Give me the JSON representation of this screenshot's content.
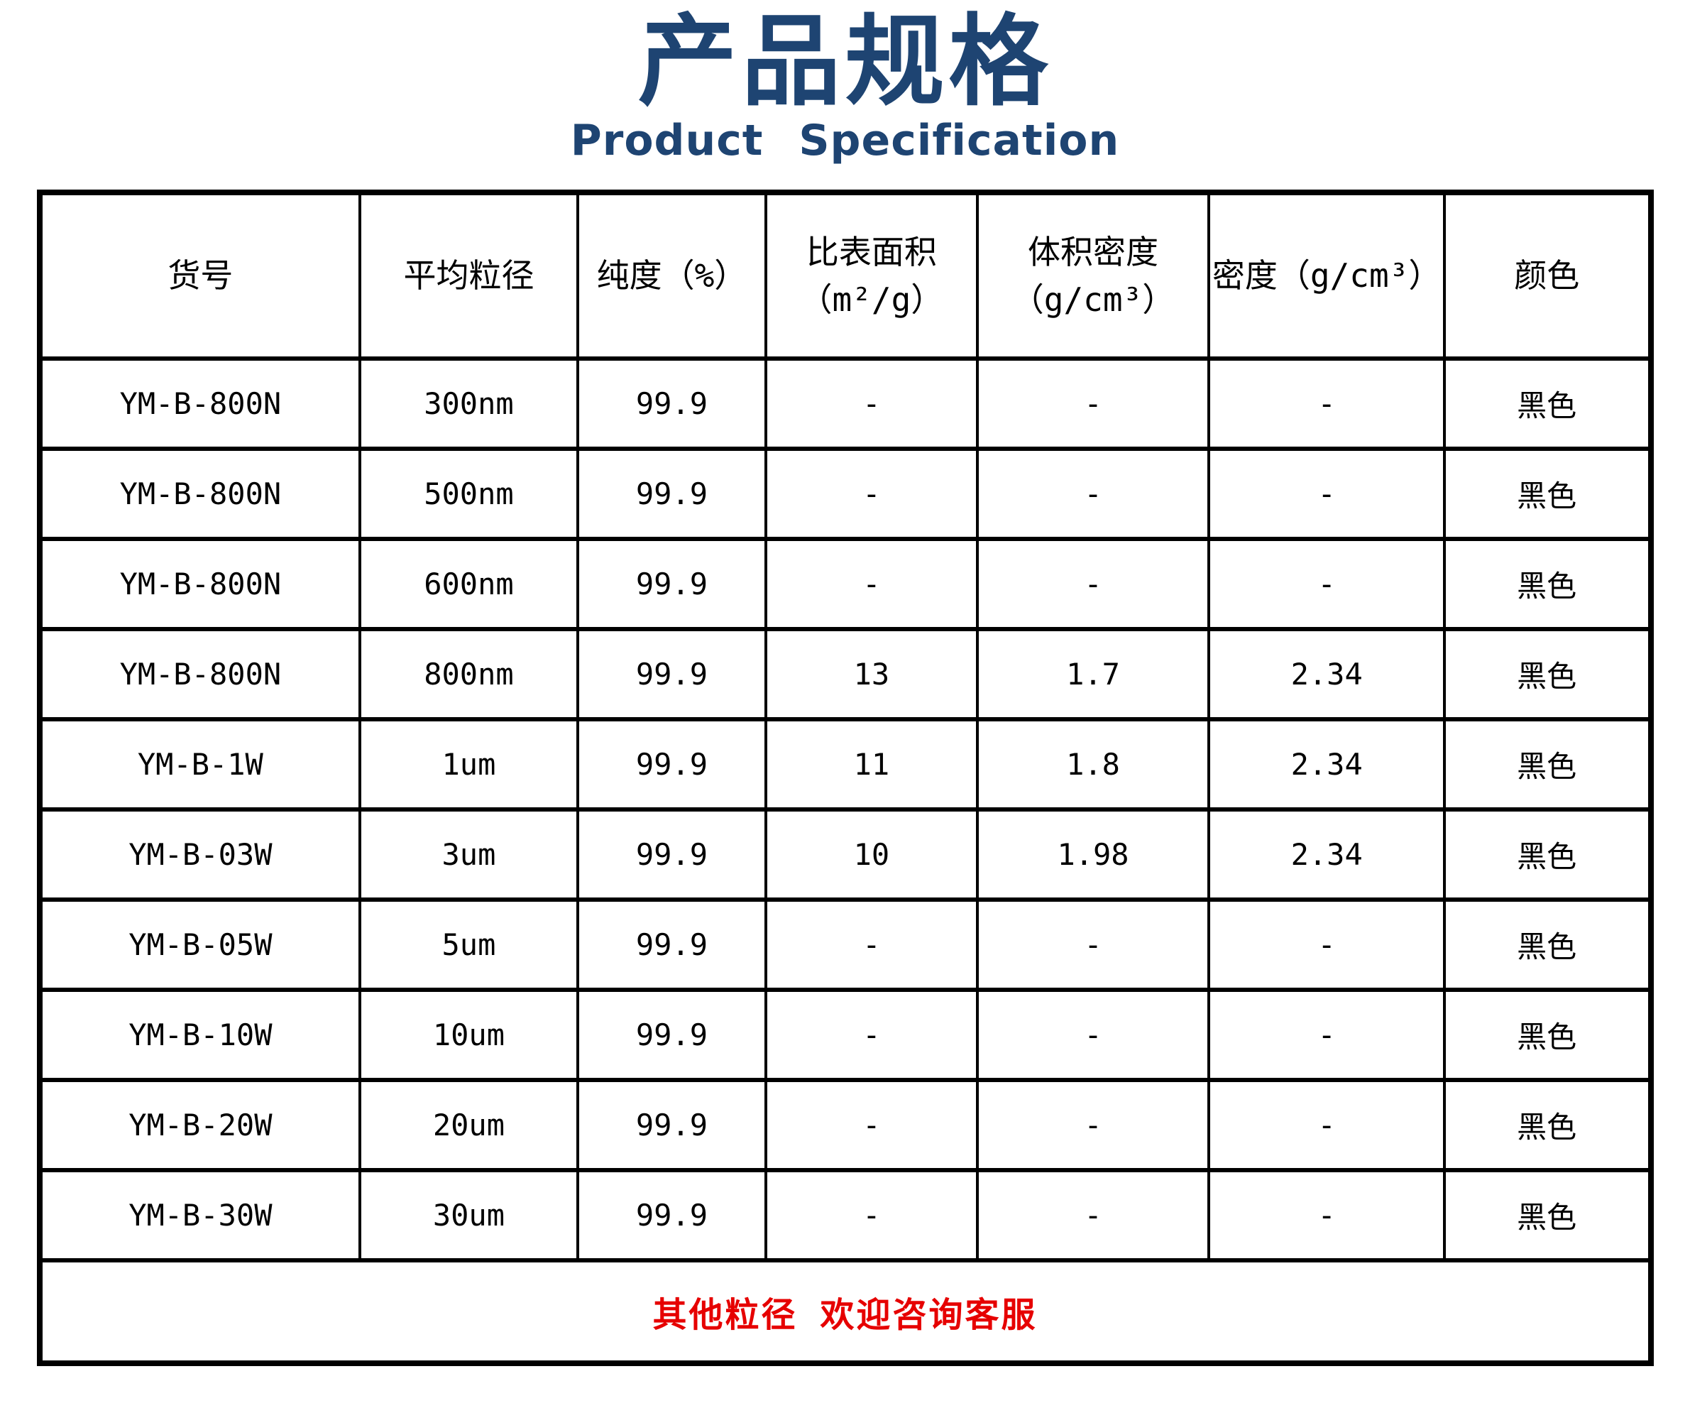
{
  "page": {
    "title": "产品规格",
    "subtitle": "Product Specification",
    "title_color": "#1E4472"
  },
  "table": {
    "headers": [
      {
        "line1": "货号",
        "line2": ""
      },
      {
        "line1": "平均粒径",
        "line2": ""
      },
      {
        "line1": "纯度（%）",
        "line2": ""
      },
      {
        "line1": "比表面积",
        "line2": "（m²/g）"
      },
      {
        "line1": "体积密度",
        "line2": "（g/cm³）"
      },
      {
        "line1": "密度（g/cm³）",
        "line2": ""
      },
      {
        "line1": "颜色",
        "line2": ""
      }
    ],
    "col_widths_percent": [
      19.9,
      13.5,
      11.7,
      13.1,
      14.4,
      14.6,
      12.8
    ],
    "rows": [
      [
        "YM-B-800N",
        "300nm",
        "99.9",
        "-",
        "-",
        "-",
        "黑色"
      ],
      [
        "YM-B-800N",
        "500nm",
        "99.9",
        "-",
        "-",
        "-",
        "黑色"
      ],
      [
        "YM-B-800N",
        "600nm",
        "99.9",
        "-",
        "-",
        "-",
        "黑色"
      ],
      [
        "YM-B-800N",
        "800nm",
        "99.9",
        "13",
        "1.7",
        "2.34",
        "黑色"
      ],
      [
        "YM-B-1W",
        "1um",
        "99.9",
        "11",
        "1.8",
        "2.34",
        "黑色"
      ],
      [
        "YM-B-03W",
        "3um",
        "99.9",
        "10",
        "1.98",
        "2.34",
        "黑色"
      ],
      [
        "YM-B-05W",
        "5um",
        "99.9",
        "-",
        "-",
        "-",
        "黑色"
      ],
      [
        "YM-B-10W",
        "10um",
        "99.9",
        "-",
        "-",
        "-",
        "黑色"
      ],
      [
        "YM-B-20W",
        "20um",
        "99.9",
        "-",
        "-",
        "-",
        "黑色"
      ],
      [
        "YM-B-30W",
        "30um",
        "99.9",
        "-",
        "-",
        "-",
        "黑色"
      ]
    ],
    "footer_note": "其他粒径 欢迎咨询客服",
    "footer_color": "#E60000",
    "border_color": "#000000"
  }
}
